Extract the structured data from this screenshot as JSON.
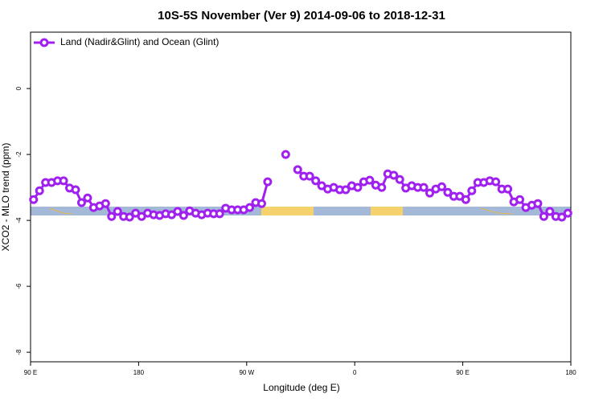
{
  "chart_data": {
    "type": "line",
    "title": "10S-5S November (Ver 9)   2014-09-06 to 2018-12-31",
    "x_label": "Longitude (deg E)",
    "y_label": "XCO2 - MLO trend (ppm)",
    "xlim": [
      90,
      540
    ],
    "ylim": [
      -8.29,
      1.71
    ],
    "xticks": [
      {
        "value": 90,
        "label": "90 E"
      },
      {
        "value": 180,
        "label": "180"
      },
      {
        "value": 270,
        "label": "90 W"
      },
      {
        "value": 360,
        "label": "0"
      },
      {
        "value": 450,
        "label": "90 E"
      },
      {
        "value": 540,
        "label": "180"
      }
    ],
    "yticks": [
      0,
      -2,
      -4,
      -6,
      -8
    ],
    "legend": "top-left",
    "x": [
      92.5,
      97.5,
      102.5,
      107.5,
      112.5,
      117.5,
      122.5,
      127.5,
      132.5,
      137.5,
      142.5,
      147.5,
      152.5,
      157.5,
      162.5,
      167.5,
      172.5,
      177.5,
      182.5,
      187.5,
      192.5,
      197.5,
      202.5,
      207.5,
      212.5,
      217.5,
      222.5,
      227.5,
      232.5,
      237.5,
      242.5,
      247.5,
      252.5,
      257.5,
      262.5,
      267.5,
      272.5,
      277.5,
      282.5,
      287.5,
      292.5,
      297.5,
      302.5,
      307.5,
      312.5,
      317.5,
      322.5,
      327.5,
      332.5,
      337.5,
      342.5,
      347.5,
      352.5,
      357.5,
      362.5,
      367.5,
      372.5,
      377.5,
      382.5,
      387.5,
      392.5,
      397.5,
      402.5,
      407.5,
      412.5,
      417.5,
      422.5,
      427.5,
      432.5,
      437.5,
      442.5,
      447.5,
      452.5,
      457.5,
      462.5,
      467.5,
      472.5,
      477.5,
      482.5,
      487.5,
      492.5,
      497.5,
      502.5,
      507.5,
      512.5,
      517.5,
      522.5,
      527.5,
      532.5,
      537.5
    ],
    "series": [
      {
        "name": "Land (Nadir&Glint) and Ocean (Glint)",
        "color": "#a020f0",
        "values": [
          -3.37,
          -3.1,
          -2.85,
          -2.85,
          -2.8,
          -2.8,
          -3.02,
          -3.07,
          -3.46,
          -3.32,
          -3.61,
          -3.56,
          -3.49,
          -3.88,
          -3.73,
          -3.88,
          -3.9,
          -3.78,
          -3.88,
          -3.78,
          -3.83,
          -3.85,
          -3.8,
          -3.83,
          -3.73,
          -3.85,
          -3.71,
          -3.78,
          -3.83,
          -3.78,
          -3.8,
          -3.8,
          -3.63,
          -3.68,
          -3.68,
          -3.68,
          -3.61,
          -3.46,
          -3.49,
          -2.83,
          null,
          null,
          -2.0,
          null,
          -2.46,
          -2.66,
          -2.66,
          -2.8,
          -2.95,
          -3.05,
          -3.0,
          -3.07,
          -3.07,
          -2.95,
          -3.0,
          -2.83,
          -2.78,
          -2.93,
          -3.0,
          -2.59,
          -2.63,
          -2.76,
          -3.02,
          -2.95,
          -3.0,
          -3.0,
          -3.17,
          -3.05,
          -2.98,
          -3.15,
          -3.27,
          -3.27,
          -3.37,
          -3.1,
          -2.85,
          -2.85,
          -2.8,
          -2.83,
          -3.05,
          -3.05,
          -3.44,
          -3.37,
          -3.61,
          -3.54,
          -3.49,
          -3.88,
          -3.73,
          -3.88,
          -3.9,
          -3.78
        ]
      }
    ]
  }
}
